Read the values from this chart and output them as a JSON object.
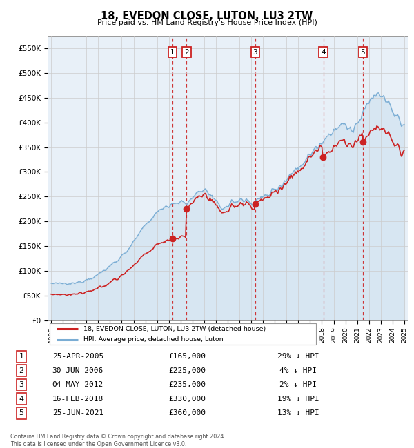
{
  "title": "18, EVEDON CLOSE, LUTON, LU3 2TW",
  "subtitle": "Price paid vs. HM Land Registry's House Price Index (HPI)",
  "hpi_color": "#7aadd4",
  "price_color": "#cc2222",
  "background_plot": "#e8f0f8",
  "ylim": [
    0,
    575000
  ],
  "yticks": [
    0,
    50000,
    100000,
    150000,
    200000,
    250000,
    300000,
    350000,
    400000,
    450000,
    500000,
    550000
  ],
  "ytick_labels": [
    "£0",
    "£50K",
    "£100K",
    "£150K",
    "£200K",
    "£250K",
    "£300K",
    "£350K",
    "£400K",
    "£450K",
    "£500K",
    "£550K"
  ],
  "sales": [
    {
      "num": 1,
      "date_str": "25-APR-2005",
      "year": 2005.32,
      "price": 165000,
      "ratio": 0.71,
      "pct": "29% ↓ HPI"
    },
    {
      "num": 2,
      "date_str": "30-JUN-2006",
      "year": 2006.5,
      "price": 225000,
      "ratio": 0.96,
      "pct": "4% ↓ HPI"
    },
    {
      "num": 3,
      "date_str": "04-MAY-2012",
      "year": 2012.34,
      "price": 235000,
      "ratio": 0.98,
      "pct": "2% ↓ HPI"
    },
    {
      "num": 4,
      "date_str": "16-FEB-2018",
      "year": 2018.12,
      "price": 330000,
      "ratio": 0.81,
      "pct": "19% ↓ HPI"
    },
    {
      "num": 5,
      "date_str": "25-JUN-2021",
      "year": 2021.48,
      "price": 360000,
      "ratio": 0.87,
      "pct": "13% ↓ HPI"
    }
  ],
  "legend_price_label": "18, EVEDON CLOSE, LUTON, LU3 2TW (detached house)",
  "legend_hpi_label": "HPI: Average price, detached house, Luton",
  "footer": "Contains HM Land Registry data © Crown copyright and database right 2024.\nThis data is licensed under the Open Government Licence v3.0."
}
